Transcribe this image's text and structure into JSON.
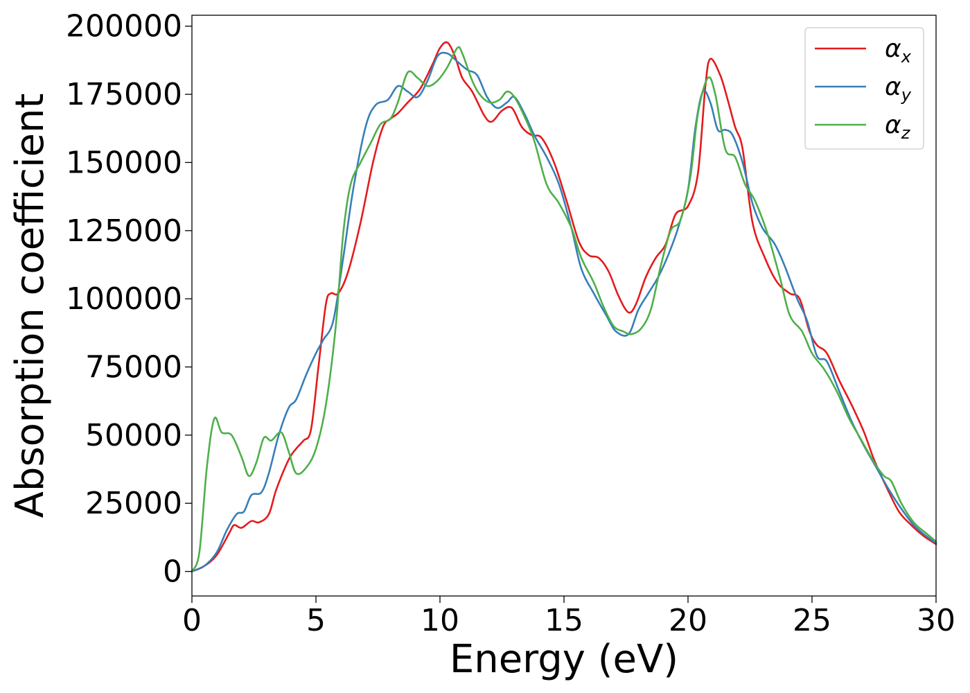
{
  "chart_data": {
    "type": "line",
    "title": "",
    "xlabel": "Energy (eV)",
    "ylabel": "Absorption coefficient",
    "xlim": [
      0,
      30
    ],
    "ylim": [
      -9000,
      204000
    ],
    "xticks": [
      0,
      5,
      10,
      15,
      20,
      25,
      30
    ],
    "yticks": [
      0,
      25000,
      50000,
      75000,
      100000,
      125000,
      150000,
      175000,
      200000
    ],
    "xtick_labels": [
      "0",
      "5",
      "10",
      "15",
      "20",
      "25",
      "30"
    ],
    "ytick_labels": [
      "0",
      "25000",
      "50000",
      "75000",
      "100000",
      "125000",
      "150000",
      "175000",
      "200000"
    ],
    "grid": false,
    "legend_position": "top-right",
    "series": [
      {
        "name": "αx",
        "symbol": "α",
        "subscript": "x",
        "color": "#e41a1c",
        "points": [
          [
            0,
            0
          ],
          [
            0.5,
            2000
          ],
          [
            1.0,
            6000
          ],
          [
            1.5,
            14000
          ],
          [
            1.7,
            17000
          ],
          [
            2.0,
            16000
          ],
          [
            2.4,
            18500
          ],
          [
            2.7,
            18000
          ],
          [
            3.1,
            21000
          ],
          [
            3.4,
            30000
          ],
          [
            3.9,
            41000
          ],
          [
            4.2,
            45000
          ],
          [
            4.5,
            48000
          ],
          [
            4.8,
            52000
          ],
          [
            5.1,
            75000
          ],
          [
            5.4,
            98000
          ],
          [
            5.6,
            102000
          ],
          [
            5.9,
            102000
          ],
          [
            6.3,
            110000
          ],
          [
            6.8,
            128000
          ],
          [
            7.3,
            150000
          ],
          [
            7.7,
            163000
          ],
          [
            8.0,
            166000
          ],
          [
            8.3,
            168000
          ],
          [
            8.7,
            172000
          ],
          [
            9.2,
            177000
          ],
          [
            9.7,
            186000
          ],
          [
            10.0,
            192000
          ],
          [
            10.3,
            194000
          ],
          [
            10.6,
            189000
          ],
          [
            10.9,
            181000
          ],
          [
            11.3,
            176000
          ],
          [
            11.8,
            167000
          ],
          [
            12.1,
            165000
          ],
          [
            12.5,
            169000
          ],
          [
            12.9,
            170000
          ],
          [
            13.3,
            163000
          ],
          [
            13.7,
            160000
          ],
          [
            14.1,
            159000
          ],
          [
            14.6,
            150000
          ],
          [
            15.1,
            136000
          ],
          [
            15.6,
            121000
          ],
          [
            16.0,
            116000
          ],
          [
            16.4,
            115000
          ],
          [
            16.8,
            110000
          ],
          [
            17.2,
            101000
          ],
          [
            17.6,
            95000
          ],
          [
            17.9,
            98000
          ],
          [
            18.3,
            108000
          ],
          [
            18.7,
            115000
          ],
          [
            19.1,
            120000
          ],
          [
            19.5,
            131000
          ],
          [
            20.0,
            134000
          ],
          [
            20.4,
            146000
          ],
          [
            20.7,
            178000
          ],
          [
            20.9,
            188000
          ],
          [
            21.3,
            182000
          ],
          [
            21.6,
            173000
          ],
          [
            21.9,
            163000
          ],
          [
            22.2,
            155000
          ],
          [
            22.6,
            128000
          ],
          [
            23.1,
            115000
          ],
          [
            23.6,
            106000
          ],
          [
            24.1,
            102000
          ],
          [
            24.5,
            100000
          ],
          [
            24.9,
            88000
          ],
          [
            25.2,
            83000
          ],
          [
            25.6,
            80000
          ],
          [
            26.1,
            70000
          ],
          [
            26.6,
            61000
          ],
          [
            27.1,
            51000
          ],
          [
            27.5,
            41000
          ],
          [
            28.0,
            31000
          ],
          [
            28.5,
            22000
          ],
          [
            29.0,
            17000
          ],
          [
            29.5,
            13000
          ],
          [
            30.0,
            10000
          ]
        ]
      },
      {
        "name": "αy",
        "symbol": "α",
        "subscript": "y",
        "color": "#377eb8",
        "points": [
          [
            0,
            0
          ],
          [
            0.5,
            2000
          ],
          [
            1.0,
            7000
          ],
          [
            1.4,
            15000
          ],
          [
            1.8,
            21000
          ],
          [
            2.1,
            22000
          ],
          [
            2.4,
            28000
          ],
          [
            2.8,
            29000
          ],
          [
            3.1,
            36000
          ],
          [
            3.5,
            50000
          ],
          [
            3.9,
            60000
          ],
          [
            4.2,
            63000
          ],
          [
            4.6,
            72000
          ],
          [
            5.0,
            80000
          ],
          [
            5.3,
            85000
          ],
          [
            5.7,
            92000
          ],
          [
            6.1,
            115000
          ],
          [
            6.5,
            140000
          ],
          [
            7.0,
            163000
          ],
          [
            7.4,
            171000
          ],
          [
            7.9,
            173000
          ],
          [
            8.3,
            178000
          ],
          [
            8.7,
            176000
          ],
          [
            9.1,
            174000
          ],
          [
            9.5,
            180000
          ],
          [
            9.9,
            189000
          ],
          [
            10.3,
            190000
          ],
          [
            10.7,
            187000
          ],
          [
            11.1,
            184000
          ],
          [
            11.5,
            182000
          ],
          [
            11.9,
            174000
          ],
          [
            12.3,
            170000
          ],
          [
            12.7,
            172000
          ],
          [
            13.0,
            174000
          ],
          [
            13.4,
            168000
          ],
          [
            13.8,
            160000
          ],
          [
            14.3,
            152000
          ],
          [
            14.8,
            142000
          ],
          [
            15.3,
            126000
          ],
          [
            15.7,
            111000
          ],
          [
            16.2,
            102000
          ],
          [
            16.7,
            94000
          ],
          [
            17.1,
            88000
          ],
          [
            17.6,
            87000
          ],
          [
            18.0,
            96000
          ],
          [
            18.4,
            102000
          ],
          [
            18.8,
            108000
          ],
          [
            19.2,
            116000
          ],
          [
            19.6,
            126000
          ],
          [
            20.0,
            140000
          ],
          [
            20.3,
            163000
          ],
          [
            20.6,
            176000
          ],
          [
            20.9,
            172000
          ],
          [
            21.2,
            162000
          ],
          [
            21.5,
            162000
          ],
          [
            21.8,
            160000
          ],
          [
            22.2,
            150000
          ],
          [
            22.6,
            135000
          ],
          [
            23.0,
            126000
          ],
          [
            23.5,
            120000
          ],
          [
            23.9,
            112000
          ],
          [
            24.4,
            100000
          ],
          [
            24.8,
            92000
          ],
          [
            25.2,
            79000
          ],
          [
            25.6,
            77000
          ],
          [
            26.1,
            66000
          ],
          [
            26.6,
            55000
          ],
          [
            27.1,
            46000
          ],
          [
            27.6,
            38000
          ],
          [
            28.1,
            30000
          ],
          [
            28.6,
            23000
          ],
          [
            29.1,
            17000
          ],
          [
            29.6,
            13000
          ],
          [
            30.0,
            10500
          ]
        ]
      },
      {
        "name": "αz",
        "symbol": "α",
        "subscript": "z",
        "color": "#4daf4a",
        "points": [
          [
            0,
            0
          ],
          [
            0.3,
            7000
          ],
          [
            0.6,
            38000
          ],
          [
            0.9,
            56000
          ],
          [
            1.2,
            51000
          ],
          [
            1.6,
            50000
          ],
          [
            2.0,
            42000
          ],
          [
            2.3,
            35000
          ],
          [
            2.6,
            40000
          ],
          [
            2.9,
            49000
          ],
          [
            3.2,
            48000
          ],
          [
            3.6,
            51000
          ],
          [
            3.9,
            44000
          ],
          [
            4.2,
            36000
          ],
          [
            4.6,
            38000
          ],
          [
            5.0,
            45000
          ],
          [
            5.4,
            61000
          ],
          [
            5.8,
            90000
          ],
          [
            6.1,
            124000
          ],
          [
            6.4,
            142000
          ],
          [
            6.8,
            150000
          ],
          [
            7.2,
            157000
          ],
          [
            7.6,
            164000
          ],
          [
            8.0,
            166000
          ],
          [
            8.3,
            172000
          ],
          [
            8.7,
            183000
          ],
          [
            9.1,
            181000
          ],
          [
            9.5,
            178000
          ],
          [
            9.9,
            180000
          ],
          [
            10.3,
            185000
          ],
          [
            10.7,
            192000
          ],
          [
            10.9,
            190000
          ],
          [
            11.3,
            180000
          ],
          [
            11.6,
            175000
          ],
          [
            12.0,
            172000
          ],
          [
            12.4,
            173000
          ],
          [
            12.7,
            176000
          ],
          [
            13.0,
            174000
          ],
          [
            13.4,
            167000
          ],
          [
            13.8,
            158000
          ],
          [
            14.3,
            142000
          ],
          [
            14.8,
            135000
          ],
          [
            15.3,
            126000
          ],
          [
            15.7,
            115000
          ],
          [
            16.2,
            106000
          ],
          [
            16.6,
            97000
          ],
          [
            17.0,
            90000
          ],
          [
            17.4,
            88000
          ],
          [
            17.7,
            87000
          ],
          [
            18.1,
            89000
          ],
          [
            18.5,
            96000
          ],
          [
            18.9,
            112000
          ],
          [
            19.3,
            125000
          ],
          [
            19.7,
            129000
          ],
          [
            20.1,
            145000
          ],
          [
            20.4,
            168000
          ],
          [
            20.8,
            181000
          ],
          [
            21.1,
            175000
          ],
          [
            21.5,
            155000
          ],
          [
            21.9,
            152000
          ],
          [
            22.3,
            142000
          ],
          [
            22.7,
            136000
          ],
          [
            23.2,
            124000
          ],
          [
            23.7,
            108000
          ],
          [
            24.1,
            94000
          ],
          [
            24.6,
            88000
          ],
          [
            25.0,
            80000
          ],
          [
            25.5,
            74000
          ],
          [
            26.0,
            66000
          ],
          [
            26.5,
            56000
          ],
          [
            27.0,
            48000
          ],
          [
            27.5,
            40000
          ],
          [
            27.9,
            35000
          ],
          [
            28.2,
            33000
          ],
          [
            28.6,
            25000
          ],
          [
            29.1,
            18000
          ],
          [
            29.6,
            14000
          ],
          [
            30.0,
            11000
          ]
        ]
      }
    ]
  }
}
